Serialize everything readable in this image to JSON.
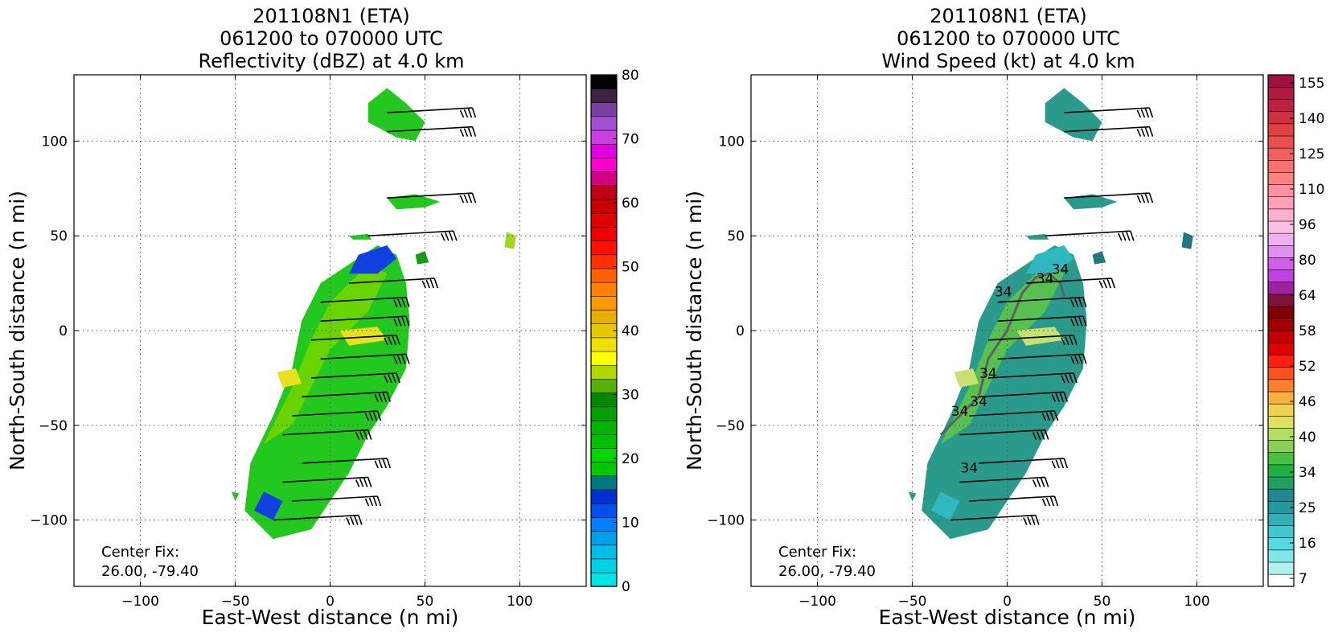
{
  "chart_data": [
    {
      "type": "heatmap",
      "title_lines": [
        "201108N1 (ETA)",
        "061200 to 070000 UTC",
        "Reflectivity (dBZ) at 4.0 km"
      ],
      "xlabel": "East-West distance (n mi)",
      "ylabel": "North-South distance (n mi)",
      "xlim": [
        -135,
        135
      ],
      "ylim": [
        -135,
        135
      ],
      "x_ticks": [
        "−100",
        "−50",
        "0",
        "50",
        "100"
      ],
      "y_ticks": [
        "100",
        "50",
        "0",
        "−50",
        "−100"
      ],
      "grid": true,
      "colorbar": {
        "min": 0,
        "max": 80,
        "tick_labels": [
          "0",
          "10",
          "20",
          "30",
          "40",
          "50",
          "60",
          "70",
          "80"
        ],
        "colors": [
          "#00e6e6",
          "#00d2e6",
          "#00bee6",
          "#00a0e6",
          "#0080ff",
          "#0050f0",
          "#0030d0",
          "#007880",
          "#00c800",
          "#00d700",
          "#00c000",
          "#00b400",
          "#00a000",
          "#008800",
          "#58b000",
          "#b0d800",
          "#ffff00",
          "#f0e000",
          "#e6c800",
          "#e6b000",
          "#ff9900",
          "#ff8000",
          "#ff6000",
          "#ff3000",
          "#ff1000",
          "#f00000",
          "#e00000",
          "#c80000",
          "#c00010",
          "#d00080",
          "#ff00c8",
          "#e000e0",
          "#c840e0",
          "#a050d0",
          "#7840a0",
          "#402040",
          "#000000"
        ]
      },
      "annotation": [
        "Center Fix:",
        "26.00, -79.40"
      ]
    },
    {
      "type": "heatmap",
      "title_lines": [
        "201108N1 (ETA)",
        "061200 to 070000 UTC",
        "Wind Speed (kt) at 4.0 km"
      ],
      "xlabel": "East-West distance (n mi)",
      "ylabel": "North-South distance (n mi)",
      "xlim": [
        -135,
        135
      ],
      "ylim": [
        -135,
        135
      ],
      "x_ticks": [
        "−100",
        "−50",
        "0",
        "50",
        "100"
      ],
      "y_ticks": [
        "100",
        "50",
        "0",
        "−50",
        "−100"
      ],
      "grid": true,
      "contour_label": "34",
      "colorbar": {
        "tick_labels": [
          "7",
          "16",
          "25",
          "34",
          "40",
          "46",
          "52",
          "58",
          "64",
          "80",
          "96",
          "110",
          "125",
          "140",
          "155"
        ],
        "colors": [
          "#ffffff",
          "#b0f0f0",
          "#80e8e8",
          "#58d8e0",
          "#40c8d0",
          "#30b0b8",
          "#2898a0",
          "#208890",
          "#20a060",
          "#20b040",
          "#48c040",
          "#88d058",
          "#b0e060",
          "#e0e060",
          "#f0d050",
          "#f8b040",
          "#ff8030",
          "#ff5020",
          "#ff2010",
          "#e00000",
          "#c00000",
          "#a00000",
          "#800000",
          "#801040",
          "#a020a0",
          "#c040e0",
          "#d060e8",
          "#e090f0",
          "#f0b0f0",
          "#f8c0e0",
          "#ffb0d0",
          "#ffa0b8",
          "#ff90a0",
          "#ff8080",
          "#f87070",
          "#f06060",
          "#e85050",
          "#e04040",
          "#d03040",
          "#c02040",
          "#b01840",
          "#a01040"
        ]
      },
      "annotation": [
        "Center Fix:",
        "26.00, -79.40"
      ]
    }
  ]
}
